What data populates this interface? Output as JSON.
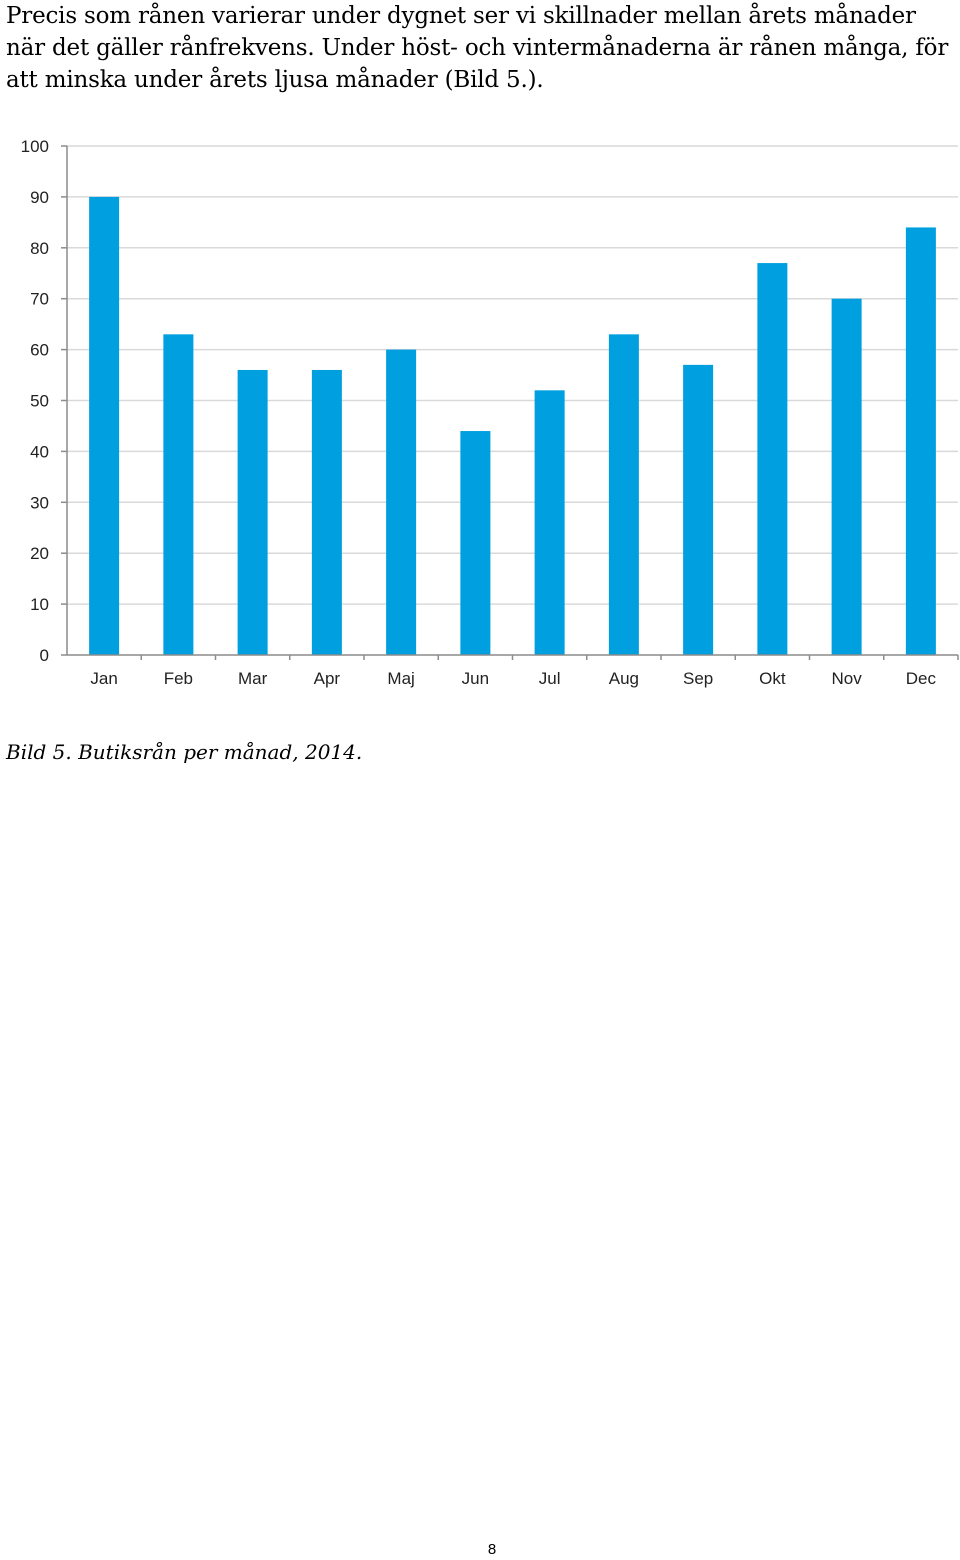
{
  "document": {
    "intro_paragraph": "Precis som rånen varierar under dygnet ser vi skillnader mellan årets månader när det gäller rånfrekvens. Under höst- och vintermånaderna är rånen många, för att minska under årets ljusa månader (Bild 5.).",
    "figure_caption": "Bild 5. Butiksrån per månad, 2014.",
    "page_number": "8"
  },
  "chart_data": {
    "type": "bar",
    "title": "",
    "xlabel": "",
    "ylabel": "",
    "categories": [
      "Jan",
      "Feb",
      "Mar",
      "Apr",
      "Maj",
      "Jun",
      "Jul",
      "Aug",
      "Sep",
      "Okt",
      "Nov",
      "Dec"
    ],
    "values": [
      90,
      63,
      56,
      56,
      60,
      44,
      52,
      63,
      57,
      77,
      70,
      84
    ],
    "ylim": [
      0,
      100
    ],
    "yticks": [
      0,
      10,
      20,
      30,
      40,
      50,
      60,
      70,
      80,
      90,
      100
    ],
    "grid": true,
    "legend": "none",
    "bar_color": "#009fdf",
    "grid_color": "#d9d9d9",
    "axis_color": "#8c8c8c"
  }
}
